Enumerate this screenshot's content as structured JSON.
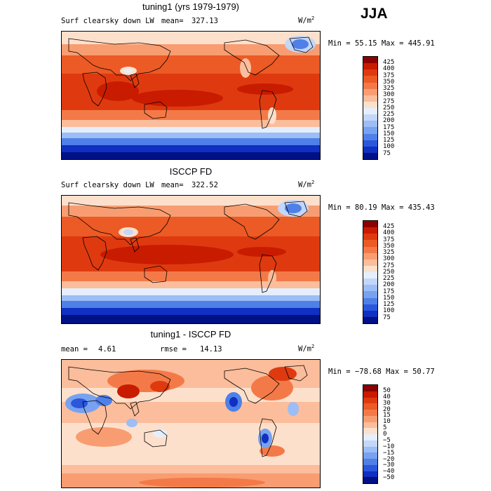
{
  "season": "JJA",
  "units_base": "W/m",
  "units_exp": "2",
  "panels": [
    {
      "title": "tuning1 (yrs 1979-1979)",
      "variable": "Surf clearsky down LW",
      "mean_label": "mean=",
      "mean": "327.13",
      "minmax": "Min =  55.15 Max = 445.91",
      "colorbar": [
        "425",
        "400",
        "375",
        "350",
        "325",
        "300",
        "275",
        "250",
        "225",
        "200",
        "175",
        "150",
        "125",
        "100",
        "75"
      ],
      "colors": [
        "#8c0000",
        "#c81b00",
        "#df3a0f",
        "#ec5a25",
        "#f37a48",
        "#f89d71",
        "#fbbd9b",
        "#fde0cc",
        "#e5eefc",
        "#c2d7f9",
        "#9cbdf5",
        "#78a2ef",
        "#4f80e8",
        "#2b57dc",
        "#0f30c2",
        "#001085"
      ]
    },
    {
      "title": "ISCCP FD",
      "variable": "Surf clearsky down LW",
      "mean_label": "mean=",
      "mean": "322.52",
      "minmax": "Min =  80.19 Max = 435.43",
      "colorbar": [
        "425",
        "400",
        "375",
        "350",
        "325",
        "300",
        "275",
        "250",
        "225",
        "200",
        "175",
        "150",
        "125",
        "100",
        "75"
      ],
      "colors": [
        "#8c0000",
        "#c81b00",
        "#df3a0f",
        "#ec5a25",
        "#f37a48",
        "#f89d71",
        "#fbbd9b",
        "#fde0cc",
        "#e5eefc",
        "#c2d7f9",
        "#9cbdf5",
        "#78a2ef",
        "#4f80e8",
        "#2b57dc",
        "#0f30c2",
        "#001085"
      ]
    },
    {
      "title": "tuning1 - ISCCP FD",
      "mean_label": "mean =",
      "mean": "4.61",
      "rmse_label": "rmse =",
      "rmse": "14.13",
      "minmax": "Min = −78.68 Max =  50.77",
      "colorbar": [
        "50",
        "40",
        "30",
        "20",
        "15",
        "10",
        "5",
        "0",
        "−5",
        "−10",
        "−15",
        "−20",
        "−30",
        "−40",
        "−50"
      ],
      "colors": [
        "#8c0000",
        "#c81b00",
        "#df3a0f",
        "#ec5a25",
        "#f37a48",
        "#f89d71",
        "#fbbd9b",
        "#fde0cc",
        "#e5eefc",
        "#c2d7f9",
        "#9cbdf5",
        "#78a2ef",
        "#4f80e8",
        "#2b57dc",
        "#0f30c2",
        "#001085"
      ]
    }
  ]
}
